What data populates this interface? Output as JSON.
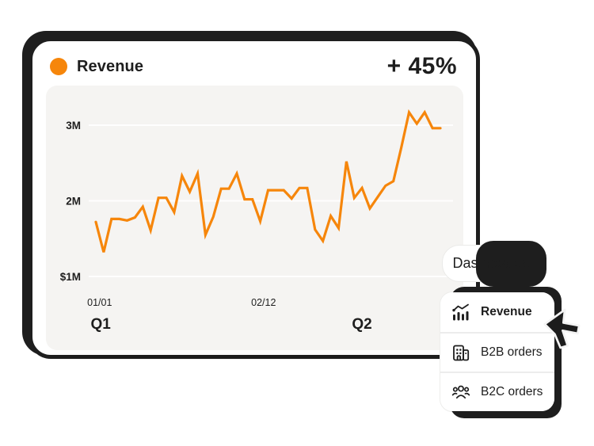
{
  "card": {
    "title": "Revenue",
    "delta_label": "+ 45%"
  },
  "chart_data": {
    "type": "line",
    "title": "Revenue",
    "unit": "millions USD",
    "line_color": "#F6860B",
    "grid": true,
    "legend_position": "none",
    "ylim": [
      0.8,
      3.4
    ],
    "y_ticks": [
      {
        "label": "3M",
        "value": 3
      },
      {
        "label": "2M",
        "value": 2
      },
      {
        "label": "$1M",
        "value": 1
      }
    ],
    "x_ticks": [
      {
        "label": "01/01",
        "pos": 0.03
      },
      {
        "label": "02/12",
        "pos": 0.48
      }
    ],
    "quarter_labels": [
      {
        "label": "Q1",
        "pos": 0.033
      },
      {
        "label": "Q2",
        "pos": 0.75
      }
    ],
    "values_millions": [
      1.72,
      1.32,
      1.76,
      1.76,
      1.74,
      1.78,
      1.92,
      1.61,
      2.04,
      2.04,
      1.85,
      2.33,
      2.12,
      2.36,
      1.55,
      1.79,
      2.16,
      2.16,
      2.36,
      2.02,
      2.02,
      1.73,
      2.14,
      2.14,
      2.14,
      2.03,
      2.17,
      2.17,
      1.62,
      1.47,
      1.8,
      1.64,
      2.52,
      2.04,
      2.17,
      1.9,
      2.05,
      2.2,
      2.26,
      2.7,
      3.17,
      3.02,
      3.17,
      2.96,
      2.96
    ]
  },
  "dashboards_button": {
    "label": "Dashboards"
  },
  "menu": {
    "items": [
      {
        "id": "revenue",
        "label": "Revenue",
        "icon": "bar-chart-trend-icon",
        "active": true
      },
      {
        "id": "b2b-orders",
        "label": "B2B orders",
        "icon": "building-icon",
        "active": false
      },
      {
        "id": "b2c-orders",
        "label": "B2C orders",
        "icon": "people-icon",
        "active": false
      }
    ]
  },
  "cursor": {
    "type": "arrow-pointer"
  },
  "colors": {
    "accent": "#F6860B",
    "ink": "#1E1E1E",
    "panel_background": "#F5F4F2",
    "gridline": "#FFFFFF",
    "divider": "#ECECEC"
  }
}
